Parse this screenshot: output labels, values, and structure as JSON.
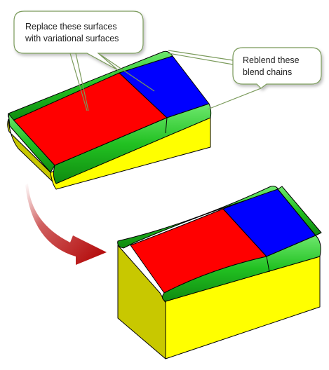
{
  "callouts": {
    "replace": {
      "line1": "Replace these surfaces",
      "line2": "with variational surfaces"
    },
    "reblend": {
      "line1": "Reblend these",
      "line2": "blend chains"
    }
  },
  "colors": {
    "red_surface": "#ff0000",
    "blue_surface": "#0000ff",
    "green_blend": "#22c122",
    "yellow_side": "#ffff00",
    "olive_end": "#c8c800",
    "arrow": "#b40000",
    "callout_border": "#7a9a5a"
  },
  "arrow_icon": "curved-arrow-icon"
}
